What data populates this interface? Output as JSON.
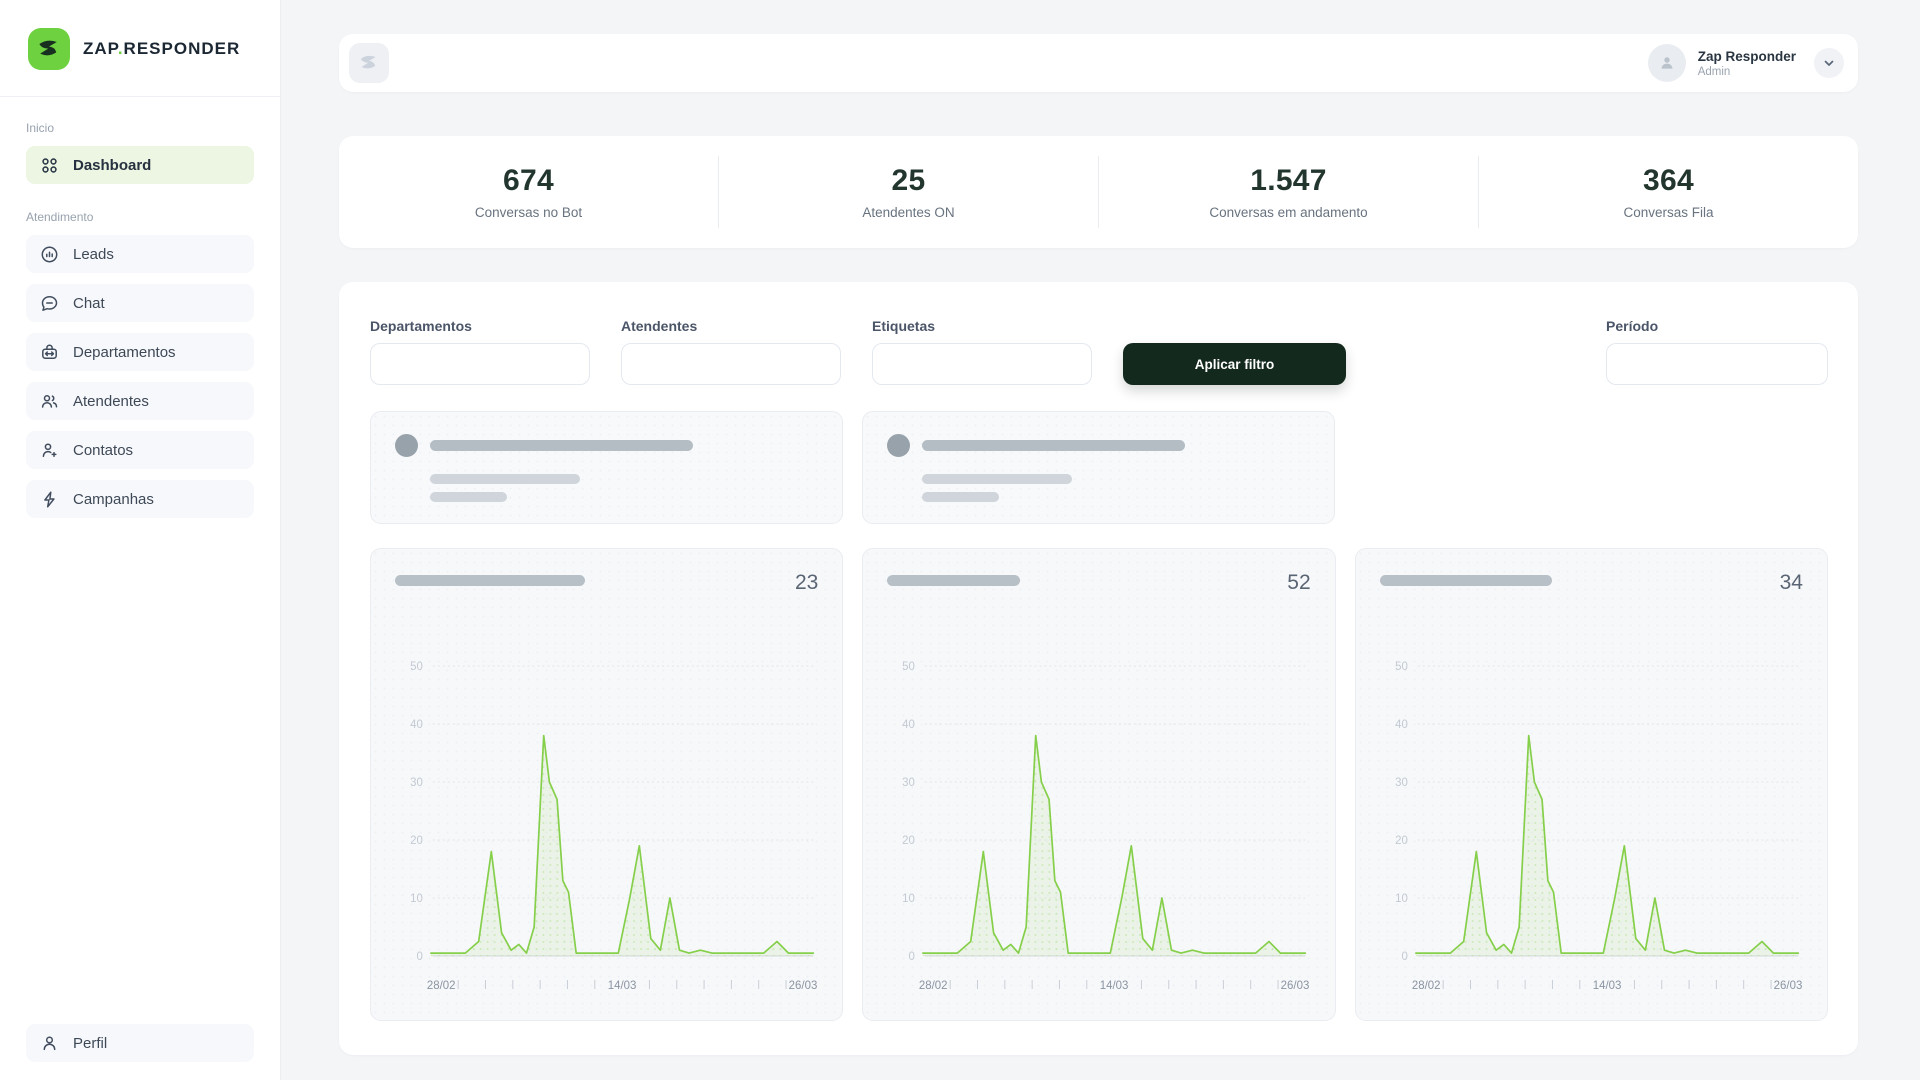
{
  "brand": {
    "name_primary": "ZAP",
    "name_dot": ".",
    "name_secondary": "RESPONDER",
    "accent_color": "#6ed13f"
  },
  "sidebar": {
    "section_home_label": "Inicio",
    "section_service_label": "Atendimento",
    "items": [
      {
        "label": "Dashboard",
        "active": true
      },
      {
        "label": "Leads"
      },
      {
        "label": "Chat"
      },
      {
        "label": "Departamentos"
      },
      {
        "label": "Atendentes"
      },
      {
        "label": "Contatos"
      },
      {
        "label": "Campanhas"
      }
    ],
    "footer_item": {
      "label": "Perfil"
    }
  },
  "header": {
    "user_name": "Zap Responder",
    "user_role": "Admin"
  },
  "stats": [
    {
      "value": "674",
      "label": "Conversas no Bot"
    },
    {
      "value": "25",
      "label": "Atendentes ON"
    },
    {
      "value": "1.547",
      "label": "Conversas em andamento"
    },
    {
      "value": "364",
      "label": "Conversas Fila"
    }
  ],
  "filters": {
    "fields": [
      {
        "label": "Departamentos",
        "value": ""
      },
      {
        "label": "Atendentes",
        "value": ""
      },
      {
        "label": "Etiquetas",
        "value": ""
      }
    ],
    "apply_button_label": "Aplicar filtro",
    "period": {
      "label": "Período",
      "value": ""
    }
  },
  "chart_data": {
    "type": "area",
    "title": "",
    "xlabel": "",
    "ylabel": "",
    "ylim": [
      0,
      50
    ],
    "yticks": [
      0,
      10,
      20,
      30,
      40,
      50
    ],
    "x_labels": [
      "28/02",
      "14/03",
      "26/03"
    ],
    "x_tick_count": 15,
    "grid": true,
    "legend": "none",
    "line_color": "#85cf4a",
    "area_fill_color": "rgba(133,207,74,0.10)",
    "area_dot_color": "rgba(133,207,74,0.30)",
    "series_points": [
      [
        0,
        0.5
      ],
      [
        9,
        0.5
      ],
      [
        12.5,
        2.5
      ],
      [
        15.8,
        18
      ],
      [
        18.5,
        4
      ],
      [
        21,
        1
      ],
      [
        23,
        2
      ],
      [
        25,
        0.5
      ],
      [
        27,
        5
      ],
      [
        29.5,
        38
      ],
      [
        31,
        30
      ],
      [
        33,
        27
      ],
      [
        34.5,
        13
      ],
      [
        36,
        11
      ],
      [
        38,
        0.5
      ],
      [
        49,
        0.5
      ],
      [
        52,
        10
      ],
      [
        54.5,
        19
      ],
      [
        57.5,
        3
      ],
      [
        60,
        1
      ],
      [
        62.5,
        10
      ],
      [
        65,
        1
      ],
      [
        67.5,
        0.5
      ],
      [
        70.5,
        1
      ],
      [
        73.5,
        0.5
      ],
      [
        87,
        0.5
      ],
      [
        90.5,
        2.5
      ],
      [
        93.5,
        0.5
      ],
      [
        100,
        0.5
      ]
    ],
    "charts": [
      {
        "total": "23",
        "skeleton_width": 190
      },
      {
        "total": "52",
        "skeleton_width": 133
      },
      {
        "total": "34",
        "skeleton_width": 172
      }
    ]
  }
}
